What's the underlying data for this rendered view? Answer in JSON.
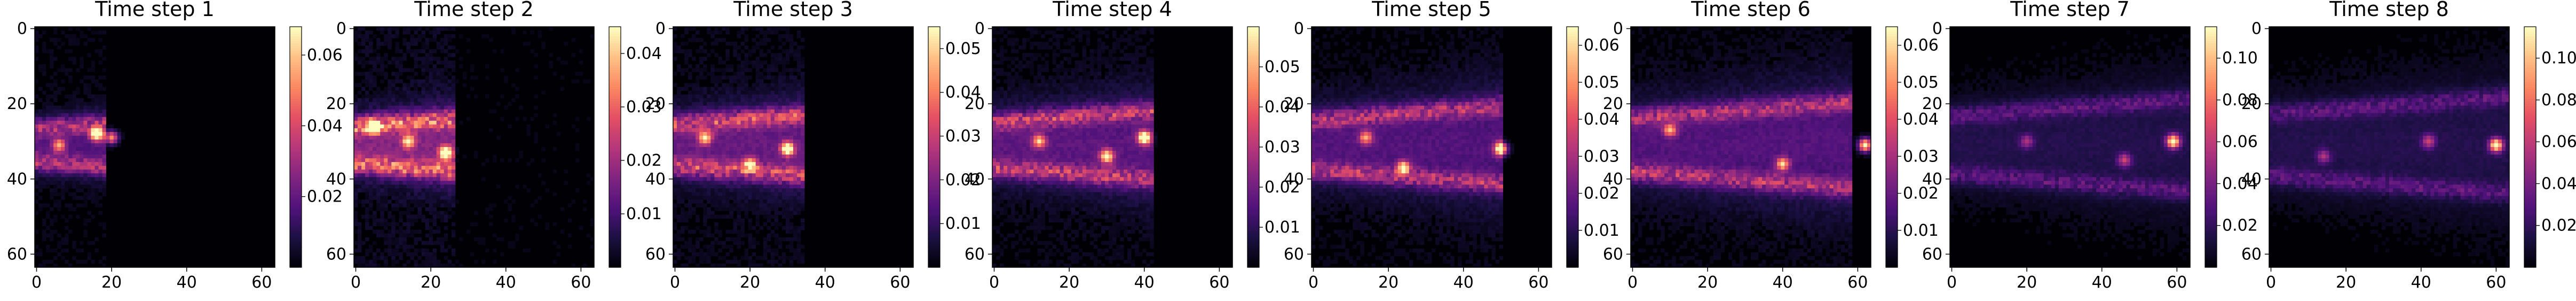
{
  "chart_data": [
    {
      "type": "heatmap",
      "title": "Time step 1",
      "xticks": [
        0,
        20,
        40,
        60
      ],
      "yticks": [
        0,
        20,
        40,
        60
      ],
      "xlim": [
        0,
        64
      ],
      "ylim": [
        64,
        0
      ],
      "grid_size": 64,
      "colormap": "magma",
      "colorbar": {
        "vmin": 0,
        "vmax": 0.068,
        "ticks": [
          0.02,
          0.04,
          0.06
        ],
        "tick_labels": [
          "0.02",
          "0.04",
          "0.06"
        ]
      },
      "hotspots": [
        {
          "x": 16,
          "y": 28,
          "v": 0.066
        },
        {
          "x": 6,
          "y": 31,
          "v": 0.04
        },
        {
          "x": 20,
          "y": 29,
          "v": 0.05
        }
      ]
    },
    {
      "type": "heatmap",
      "title": "Time step 2",
      "xticks": [
        0,
        20,
        40,
        60
      ],
      "yticks": [
        0,
        20,
        40,
        60
      ],
      "xlim": [
        0,
        64
      ],
      "ylim": [
        64,
        0
      ],
      "grid_size": 64,
      "colormap": "magma",
      "colorbar": {
        "vmin": 0,
        "vmax": 0.045,
        "ticks": [
          0.01,
          0.02,
          0.03,
          0.04
        ],
        "tick_labels": [
          "0.01",
          "0.02",
          "0.03",
          "0.04"
        ]
      },
      "hotspots": [
        {
          "x": 5,
          "y": 26,
          "v": 0.044
        },
        {
          "x": 24,
          "y": 33,
          "v": 0.042
        },
        {
          "x": 14,
          "y": 30,
          "v": 0.03
        }
      ]
    },
    {
      "type": "heatmap",
      "title": "Time step 3",
      "xticks": [
        0,
        20,
        40,
        60
      ],
      "yticks": [
        0,
        20,
        40,
        60
      ],
      "xlim": [
        0,
        64
      ],
      "ylim": [
        64,
        0
      ],
      "grid_size": 64,
      "colormap": "magma",
      "colorbar": {
        "vmin": 0,
        "vmax": 0.055,
        "ticks": [
          0.01,
          0.02,
          0.03,
          0.04,
          0.05
        ],
        "tick_labels": [
          "0.01",
          "0.02",
          "0.03",
          "0.04",
          "0.05"
        ]
      },
      "hotspots": [
        {
          "x": 30,
          "y": 32,
          "v": 0.054
        },
        {
          "x": 8,
          "y": 29,
          "v": 0.04
        },
        {
          "x": 20,
          "y": 36,
          "v": 0.035
        }
      ]
    },
    {
      "type": "heatmap",
      "title": "Time step 4",
      "xticks": [
        0,
        20,
        40,
        60
      ],
      "yticks": [
        0,
        20,
        40,
        60
      ],
      "xlim": [
        0,
        64
      ],
      "ylim": [
        64,
        0
      ],
      "grid_size": 64,
      "colormap": "magma",
      "colorbar": {
        "vmin": 0,
        "vmax": 0.06,
        "ticks": [
          0.01,
          0.02,
          0.03,
          0.04,
          0.05
        ],
        "tick_labels": [
          "0.01",
          "0.02",
          "0.03",
          "0.04",
          "0.05"
        ]
      },
      "hotspots": [
        {
          "x": 40,
          "y": 29,
          "v": 0.06
        },
        {
          "x": 30,
          "y": 34,
          "v": 0.05
        },
        {
          "x": 12,
          "y": 30,
          "v": 0.04
        }
      ]
    },
    {
      "type": "heatmap",
      "title": "Time step 5",
      "xticks": [
        0,
        20,
        40,
        60
      ],
      "yticks": [
        0,
        20,
        40,
        60
      ],
      "xlim": [
        0,
        64
      ],
      "ylim": [
        64,
        0
      ],
      "grid_size": 64,
      "colormap": "magma",
      "colorbar": {
        "vmin": 0,
        "vmax": 0.065,
        "ticks": [
          0.01,
          0.02,
          0.03,
          0.04,
          0.05,
          0.06
        ],
        "tick_labels": [
          "0.01",
          "0.02",
          "0.03",
          "0.04",
          "0.05",
          "0.06"
        ]
      },
      "hotspots": [
        {
          "x": 50,
          "y": 32,
          "v": 0.064
        },
        {
          "x": 24,
          "y": 37,
          "v": 0.05
        },
        {
          "x": 14,
          "y": 29,
          "v": 0.04
        }
      ]
    },
    {
      "type": "heatmap",
      "title": "Time step 6",
      "xticks": [
        0,
        20,
        40,
        60
      ],
      "yticks": [
        0,
        20,
        40,
        60
      ],
      "xlim": [
        0,
        64
      ],
      "ylim": [
        64,
        0
      ],
      "grid_size": 64,
      "colormap": "magma",
      "colorbar": {
        "vmin": 0,
        "vmax": 0.065,
        "ticks": [
          0.01,
          0.02,
          0.03,
          0.04,
          0.05,
          0.06
        ],
        "tick_labels": [
          "0.01",
          "0.02",
          "0.03",
          "0.04",
          "0.05",
          "0.06"
        ]
      },
      "hotspots": [
        {
          "x": 62,
          "y": 31,
          "v": 0.065
        },
        {
          "x": 40,
          "y": 36,
          "v": 0.045
        },
        {
          "x": 10,
          "y": 27,
          "v": 0.04
        }
      ]
    },
    {
      "type": "heatmap",
      "title": "Time step 7",
      "xticks": [
        0,
        20,
        40,
        60
      ],
      "yticks": [
        0,
        20,
        40,
        60
      ],
      "xlim": [
        0,
        64
      ],
      "ylim": [
        64,
        0
      ],
      "grid_size": 64,
      "colormap": "magma",
      "colorbar": {
        "vmin": 0,
        "vmax": 0.115,
        "ticks": [
          0.02,
          0.04,
          0.06,
          0.08,
          0.1
        ],
        "tick_labels": [
          "0.02",
          "0.04",
          "0.06",
          "0.08",
          "0.10"
        ]
      },
      "hotspots": [
        {
          "x": 59,
          "y": 30,
          "v": 0.11
        },
        {
          "x": 46,
          "y": 35,
          "v": 0.05
        },
        {
          "x": 20,
          "y": 30,
          "v": 0.04
        }
      ]
    },
    {
      "type": "heatmap",
      "title": "Time step 8",
      "xticks": [
        0,
        20,
        40,
        60
      ],
      "yticks": [
        0,
        20,
        40,
        60
      ],
      "xlim": [
        0,
        64
      ],
      "ylim": [
        64,
        0
      ],
      "grid_size": 64,
      "colormap": "magma",
      "colorbar": {
        "vmin": 0,
        "vmax": 0.115,
        "ticks": [
          0.02,
          0.04,
          0.06,
          0.08,
          0.1
        ],
        "tick_labels": [
          "0.02",
          "0.04",
          "0.06",
          "0.08",
          "0.10"
        ]
      },
      "hotspots": [
        {
          "x": 60,
          "y": 31,
          "v": 0.11
        },
        {
          "x": 42,
          "y": 30,
          "v": 0.05
        },
        {
          "x": 14,
          "y": 34,
          "v": 0.04
        }
      ]
    }
  ]
}
